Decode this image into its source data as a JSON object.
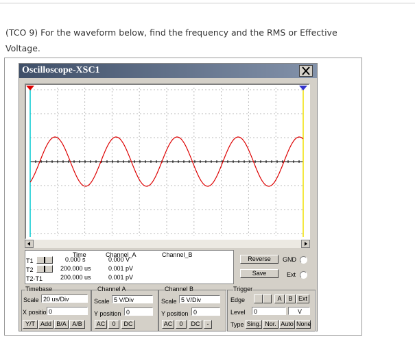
{
  "question": {
    "lines": [
      "(TCO 9) For the waveform below, find the frequency and the RMS or Effective",
      "Voltage."
    ]
  },
  "window": {
    "title": "Oscilloscope-XSC1"
  },
  "readout": {
    "headers": [
      "Time",
      "Channel_A",
      "Channel_B"
    ],
    "rows": [
      {
        "label": "T1",
        "time": "0.000 s",
        "channel_a": "0.000 V"
      },
      {
        "label": "T2",
        "time": "200.000 us",
        "channel_a": "0.001 pV"
      },
      {
        "label": "T2-T1",
        "time": "200.000 us",
        "channel_a": "0.001 pV"
      }
    ]
  },
  "buttons": {
    "reverse": "Reverse",
    "save": "Save"
  },
  "ground": {
    "gnd": "GND",
    "ext": "Ext"
  },
  "timebase": {
    "title": "Timebase",
    "scale_label": "Scale",
    "scale": "20 us/Div",
    "xpos_label": "X position",
    "xpos": "0",
    "modes": [
      "Y/T",
      "Add",
      "B/A",
      "A/B"
    ]
  },
  "channel_a": {
    "title": "Channel A",
    "scale_label": "Scale",
    "scale": "5 V/Div",
    "ypos_label": "Y position",
    "ypos": "0",
    "coupling": [
      "AC",
      "0",
      "DC"
    ]
  },
  "channel_b": {
    "title": "Channel B",
    "scale_label": "Scale",
    "scale": "5 V/Div",
    "ypos_label": "Y position",
    "ypos": "0",
    "coupling": [
      "AC",
      "0",
      "DC",
      "-"
    ]
  },
  "trigger": {
    "title": "Trigger",
    "edge_label": "Edge",
    "sources": [
      "A",
      "B",
      "Ext"
    ],
    "level_label": "Level",
    "level": "0",
    "unit": "V",
    "type_label": "Type",
    "types": [
      "Sing.",
      "Nor.",
      "Auto",
      "None"
    ]
  }
}
